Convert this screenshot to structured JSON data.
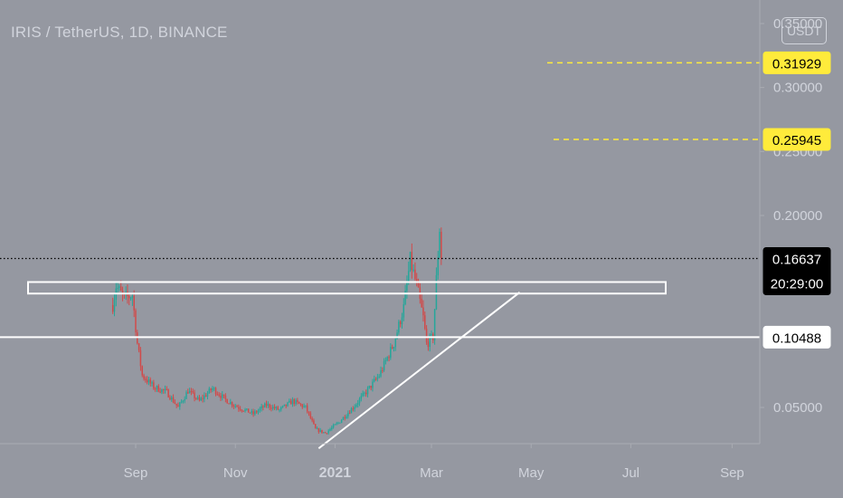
{
  "header": {
    "symbol_title": "IRIS / TetherUS, 1D, BINANCE",
    "currency_label": "USDT"
  },
  "colors": {
    "background": "#9598a1",
    "axis_text": "#d1d4dc",
    "up_candle": "#26a69a",
    "down_candle": "#d14a4a",
    "target_line": "#ffeb3b",
    "drawing": "#ffffff",
    "last_price_badge": "#000000"
  },
  "chart_data": {
    "type": "candlestick",
    "title": "IRIS / TetherUS, 1D, BINANCE",
    "y_axis_unit": "USDT",
    "y_axis_ticks": [
      "0.35000",
      "0.30000",
      "0.25000",
      "0.20000",
      "0.05000"
    ],
    "x_axis_ticks": [
      "Sep",
      "Nov",
      "2021",
      "Mar",
      "May",
      "Jul",
      "Sep"
    ],
    "x_axis_tick_dates": [
      "2020-09-01",
      "2020-11-01",
      "2021-01-01",
      "2021-03-01",
      "2021-05-01",
      "2021-07-01",
      "2021-09-01"
    ],
    "date_range": [
      "2020-08-18",
      "2021-03-07"
    ],
    "price_range": [
      0.018,
      0.358
    ],
    "last_price": {
      "value": 0.16637,
      "label": "0.16637",
      "countdown": "20:29:00"
    },
    "levels": [
      {
        "label": "0.31929",
        "value": 0.31929,
        "style": "yellow-dashed"
      },
      {
        "label": "0.25945",
        "value": 0.25945,
        "style": "yellow-dashed"
      },
      {
        "label": "0.10488",
        "value": 0.10488,
        "style": "white-solid"
      }
    ],
    "resistance_zone": {
      "from": 0.139,
      "to": 0.148
    },
    "trendline": {
      "start": [
        "2020-12-22",
        0.018
      ],
      "end": [
        "2021-04-24",
        0.14
      ]
    },
    "price_anchors": [
      [
        "2020-08-18",
        0.13
      ],
      [
        "2020-08-20",
        0.145
      ],
      [
        "2020-08-25",
        0.135
      ],
      [
        "2020-08-30",
        0.138
      ],
      [
        "2020-09-02",
        0.1
      ],
      [
        "2020-09-05",
        0.075
      ],
      [
        "2020-09-12",
        0.066
      ],
      [
        "2020-09-20",
        0.062
      ],
      [
        "2020-09-27",
        0.05
      ],
      [
        "2020-10-03",
        0.063
      ],
      [
        "2020-10-10",
        0.055
      ],
      [
        "2020-10-18",
        0.065
      ],
      [
        "2020-10-26",
        0.056
      ],
      [
        "2020-11-03",
        0.05
      ],
      [
        "2020-11-12",
        0.045
      ],
      [
        "2020-11-20",
        0.052
      ],
      [
        "2020-11-28",
        0.048
      ],
      [
        "2020-12-06",
        0.055
      ],
      [
        "2020-12-14",
        0.05
      ],
      [
        "2020-12-20",
        0.033
      ],
      [
        "2020-12-26",
        0.03
      ],
      [
        "2021-01-03",
        0.038
      ],
      [
        "2021-01-12",
        0.05
      ],
      [
        "2021-01-20",
        0.062
      ],
      [
        "2021-01-28",
        0.075
      ],
      [
        "2021-02-06",
        0.1
      ],
      [
        "2021-02-12",
        0.128
      ],
      [
        "2021-02-16",
        0.165
      ],
      [
        "2021-02-20",
        0.145
      ],
      [
        "2021-02-24",
        0.12
      ],
      [
        "2021-02-26",
        0.1
      ],
      [
        "2021-03-02",
        0.105
      ],
      [
        "2021-03-04",
        0.15
      ],
      [
        "2021-03-06",
        0.19
      ],
      [
        "2021-03-07",
        0.166
      ]
    ]
  }
}
